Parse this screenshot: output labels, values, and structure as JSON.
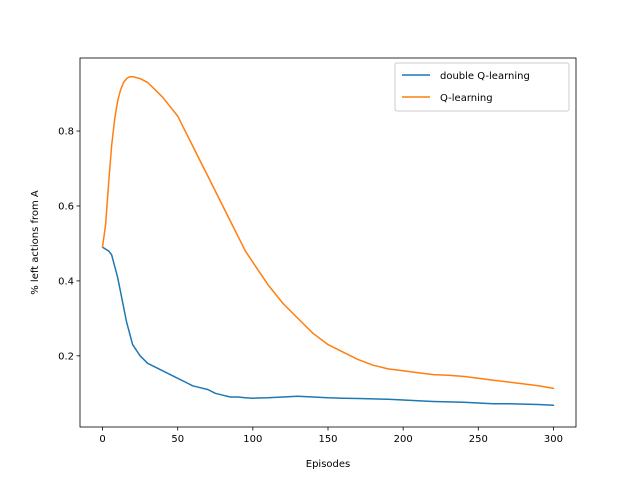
{
  "chart_data": {
    "type": "line",
    "title": "",
    "xlabel": "Episodes",
    "ylabel": "% left actions from A",
    "xlim": [
      -15,
      315
    ],
    "ylim": [
      0.01,
      0.995
    ],
    "xticks": [
      0,
      50,
      100,
      150,
      200,
      250,
      300
    ],
    "yticks": [
      0.2,
      0.4,
      0.6,
      0.8
    ],
    "xtick_labels": [
      "0",
      "50",
      "100",
      "150",
      "200",
      "250",
      "300"
    ],
    "ytick_labels": [
      "0.2",
      "0.4",
      "0.6",
      "0.8"
    ],
    "grid": false,
    "legend_position": "upper right",
    "series": [
      {
        "name": "double Q-learning",
        "color": "#1f77b4",
        "x": [
          0,
          2,
          4,
          6,
          8,
          10,
          12,
          14,
          16,
          18,
          20,
          25,
          30,
          35,
          40,
          45,
          50,
          55,
          60,
          65,
          70,
          75,
          80,
          85,
          90,
          95,
          100,
          110,
          120,
          130,
          140,
          150,
          160,
          170,
          180,
          190,
          200,
          210,
          220,
          230,
          240,
          250,
          260,
          270,
          280,
          290,
          300
        ],
        "y": [
          0.49,
          0.485,
          0.48,
          0.47,
          0.44,
          0.41,
          0.37,
          0.33,
          0.29,
          0.26,
          0.23,
          0.2,
          0.18,
          0.17,
          0.16,
          0.15,
          0.14,
          0.13,
          0.12,
          0.115,
          0.11,
          0.1,
          0.095,
          0.09,
          0.09,
          0.088,
          0.087,
          0.088,
          0.09,
          0.092,
          0.09,
          0.088,
          0.087,
          0.086,
          0.085,
          0.084,
          0.082,
          0.08,
          0.078,
          0.077,
          0.076,
          0.074,
          0.072,
          0.072,
          0.071,
          0.07,
          0.068
        ]
      },
      {
        "name": "Q-learning",
        "color": "#ff7f0e",
        "x": [
          0,
          2,
          4,
          6,
          8,
          10,
          12,
          14,
          16,
          18,
          20,
          25,
          30,
          35,
          40,
          45,
          50,
          55,
          60,
          65,
          70,
          75,
          80,
          85,
          90,
          95,
          100,
          110,
          120,
          130,
          140,
          150,
          160,
          170,
          180,
          190,
          200,
          210,
          220,
          230,
          240,
          250,
          260,
          270,
          280,
          290,
          300
        ],
        "y": [
          0.49,
          0.55,
          0.66,
          0.76,
          0.83,
          0.88,
          0.91,
          0.93,
          0.94,
          0.945,
          0.945,
          0.94,
          0.93,
          0.91,
          0.89,
          0.865,
          0.84,
          0.8,
          0.76,
          0.72,
          0.68,
          0.64,
          0.6,
          0.56,
          0.52,
          0.48,
          0.45,
          0.39,
          0.34,
          0.3,
          0.26,
          0.23,
          0.21,
          0.19,
          0.175,
          0.165,
          0.16,
          0.155,
          0.15,
          0.148,
          0.145,
          0.14,
          0.135,
          0.13,
          0.125,
          0.12,
          0.113
        ]
      }
    ]
  }
}
